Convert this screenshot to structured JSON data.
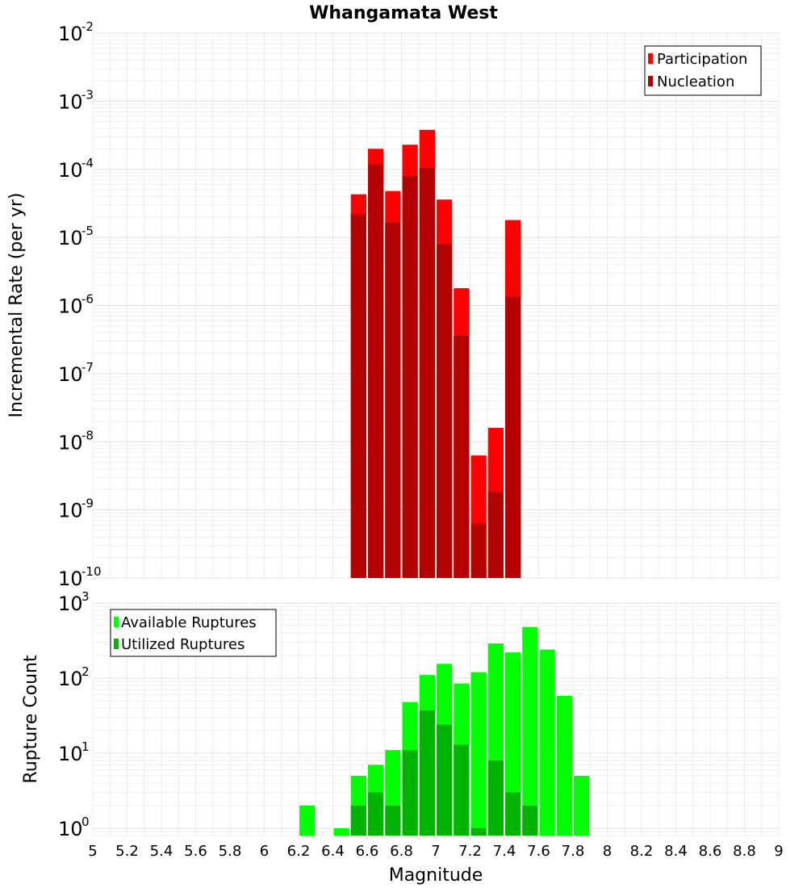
{
  "chart_data": [
    {
      "type": "bar",
      "title": "Whangamata West",
      "ylabel": "Incremental Rate (per yr)",
      "xlabel": "",
      "xlim": [
        5,
        9
      ],
      "ylim": [
        1e-10,
        0.01
      ],
      "yscale": "log",
      "grid": true,
      "legend_position": "top-right",
      "bar_width": 0.1,
      "ytick_exponents": [
        -2,
        -3,
        -4,
        -5,
        -6,
        -7,
        -8,
        -9,
        -10
      ],
      "x": [
        6.55,
        6.65,
        6.75,
        6.85,
        6.95,
        7.05,
        7.15,
        7.25,
        7.35,
        7.45
      ],
      "series": [
        {
          "name": "Participation",
          "color": "#ff0000",
          "values": [
            4.3e-05,
            0.0002,
            4.8e-05,
            0.00023,
            0.00038,
            3.6e-05,
            1.8e-06,
            6.3e-09,
            1.6e-08,
            1.8e-05
          ]
        },
        {
          "name": "Nucleation",
          "color": "#b30000",
          "values": [
            2.2e-05,
            0.00012,
            1.65e-05,
            8e-05,
            0.000105,
            8e-06,
            3.6e-07,
            6.3e-10,
            1.85e-09,
            1.35e-06
          ]
        }
      ]
    },
    {
      "type": "bar",
      "title": "",
      "ylabel": "Rupture Count",
      "xlabel": "Magnitude",
      "xlim": [
        5,
        9
      ],
      "ylim": [
        0.8,
        1000
      ],
      "yscale": "log",
      "grid": true,
      "legend_position": "top-left",
      "bar_width": 0.1,
      "ytick_exponents": [
        3,
        2,
        1,
        0
      ],
      "xticks": [
        "5",
        "5.2",
        "5.4",
        "5.6",
        "5.8",
        "6",
        "6.2",
        "6.4",
        "6.6",
        "6.8",
        "7",
        "7.2",
        "7.4",
        "7.6",
        "7.8",
        "8",
        "8.2",
        "8.4",
        "8.6",
        "8.8",
        "9"
      ],
      "x": [
        6.25,
        6.45,
        6.55,
        6.65,
        6.75,
        6.85,
        6.95,
        7.05,
        7.15,
        7.25,
        7.35,
        7.45,
        7.55,
        7.65,
        7.75,
        7.85
      ],
      "series": [
        {
          "name": "Available Ruptures",
          "color": "#00ff00",
          "values": [
            2,
            1,
            5,
            7,
            11,
            48,
            110,
            155,
            85,
            120,
            290,
            220,
            480,
            240,
            58,
            5
          ]
        },
        {
          "name": "Utilized Ruptures",
          "color": "#00b300",
          "values": [
            null,
            null,
            2,
            3,
            2,
            11,
            37,
            24,
            13,
            1,
            8,
            3,
            2,
            null,
            null,
            null
          ]
        }
      ]
    }
  ]
}
